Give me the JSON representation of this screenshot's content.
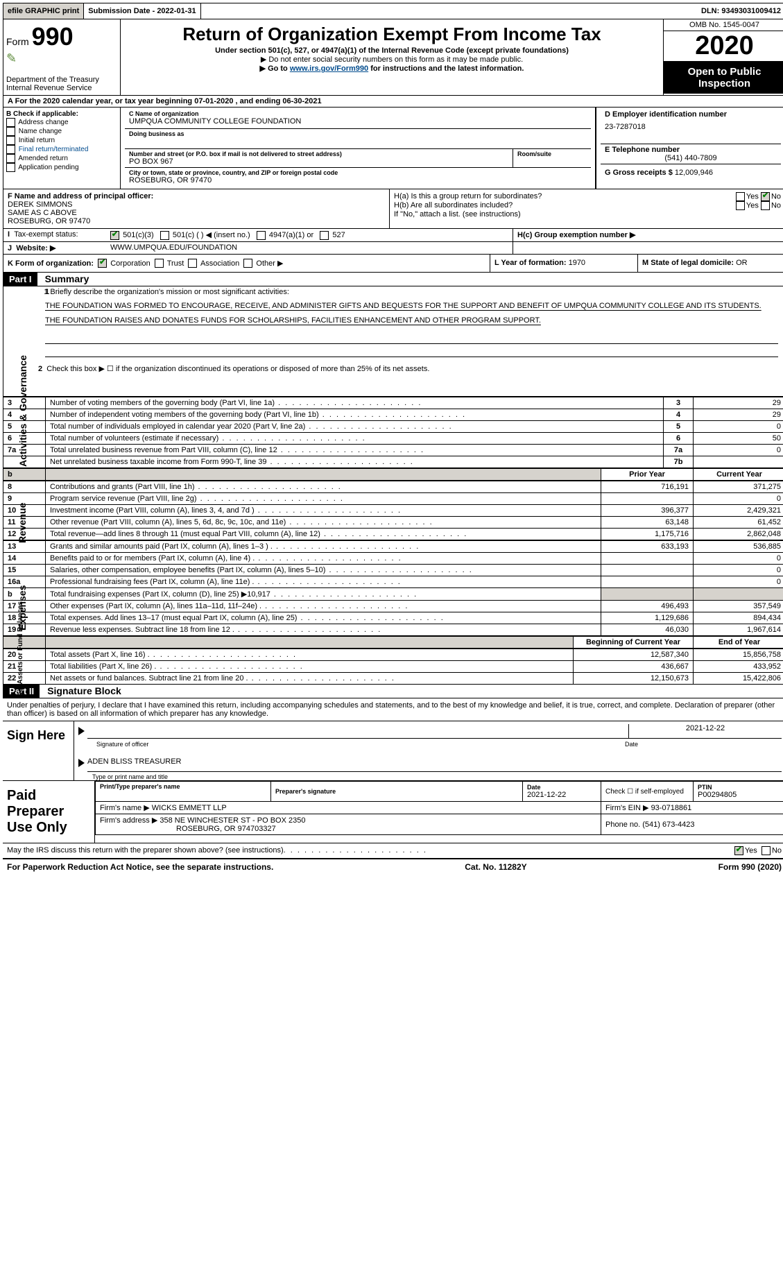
{
  "topbar": {
    "efile": "efile GRAPHIC print",
    "submission": "Submission Date - 2022-01-31",
    "dln": "DLN: 93493031009412"
  },
  "header": {
    "form_label": "Form",
    "form_number": "990",
    "title": "Return of Organization Exempt From Income Tax",
    "under_section": "Under section 501(c), 527, or 4947(a)(1) of the Internal Revenue Code (except private foundations)",
    "note1": "▶ Do not enter social security numbers on this form as it may be made public.",
    "note2_pre": "▶ Go to ",
    "note2_link": "www.irs.gov/Form990",
    "note2_post": " for instructions and the latest information.",
    "dept": "Department of the Treasury",
    "irs": "Internal Revenue Service",
    "omb": "OMB No. 1545-0047",
    "year": "2020",
    "open_pub": "Open to Public Inspection"
  },
  "line_a": "For the 2020 calendar year, or tax year beginning 07-01-2020    , and ending 06-30-2021",
  "col_b": {
    "header": "B Check if applicable:",
    "items": [
      "Address change",
      "Name change",
      "Initial return",
      "Final return/terminated",
      "Amended return",
      "Application pending"
    ]
  },
  "col_c": {
    "name_label": "C Name of organization",
    "name": "UMPQUA COMMUNITY COLLEGE FOUNDATION",
    "dba_label": "Doing business as",
    "dba": "",
    "street_label": "Number and street (or P.O. box if mail is not delivered to street address)",
    "street": "PO BOX 967",
    "room_label": "Room/suite",
    "city_label": "City or town, state or province, country, and ZIP or foreign postal code",
    "city": "ROSEBURG, OR  97470"
  },
  "col_d": {
    "label": "D Employer identification number",
    "value": "23-7287018"
  },
  "col_e": {
    "label": "E Telephone number",
    "value": "(541) 440-7809"
  },
  "col_g": {
    "label": "G Gross receipts $",
    "value": "12,009,946"
  },
  "col_f": {
    "label": "F  Name and address of principal officer:",
    "name": "DEREK SIMMONS",
    "line2": "SAME AS C ABOVE",
    "line3": "ROSEBURG, OR  97470"
  },
  "col_h": {
    "ha": "H(a)  Is this a group return for subordinates?",
    "hb": "H(b)  Are all subordinates included?",
    "hb_note": "If \"No,\" attach a list. (see instructions)",
    "hc": "H(c)  Group exemption number ▶",
    "yes": "Yes",
    "no": "No"
  },
  "line_i": {
    "label": "Tax-exempt status:",
    "opt1": "501(c)(3)",
    "opt2": "501(c) (   ) ◀ (insert no.)",
    "opt3": "4947(a)(1) or",
    "opt4": "527"
  },
  "line_j": {
    "label": "Website: ▶",
    "value": "WWW.UMPQUA.EDU/FOUNDATION"
  },
  "line_k": {
    "label": "K Form of organization:",
    "opts": [
      "Corporation",
      "Trust",
      "Association",
      "Other ▶"
    ]
  },
  "line_l": {
    "label": "L Year of formation:",
    "value": "1970"
  },
  "line_m": {
    "label": "M State of legal domicile:",
    "value": "OR"
  },
  "part1": {
    "header": "Part I",
    "title": "Summary",
    "line1_label": "1  Briefly describe the organization's mission or most significant activities:",
    "mission": "THE FOUNDATION WAS FORMED TO ENCOURAGE, RECEIVE, AND ADMINISTER GIFTS AND BEQUESTS FOR THE SUPPORT AND BENEFIT OF UMPQUA COMMUNITY COLLEGE AND ITS STUDENTS. THE FOUNDATION RAISES AND DONATES FUNDS FOR SCHOLARSHIPS, FACILITIES ENHANCEMENT AND OTHER PROGRAM SUPPORT.",
    "line2": "Check this box ▶ ☐ if the organization discontinued its operations or disposed of more than 25% of its net assets.",
    "side_activities": "Activities & Governance",
    "side_revenue": "Revenue",
    "side_expenses": "Expenses",
    "side_net": "Net Assets or Fund Balances"
  },
  "governance_rows": [
    {
      "n": "3",
      "label": "Number of voting members of the governing body (Part VI, line 1a)",
      "box": "3",
      "val": "29"
    },
    {
      "n": "4",
      "label": "Number of independent voting members of the governing body (Part VI, line 1b)",
      "box": "4",
      "val": "29"
    },
    {
      "n": "5",
      "label": "Total number of individuals employed in calendar year 2020 (Part V, line 2a)",
      "box": "5",
      "val": "0"
    },
    {
      "n": "6",
      "label": "Total number of volunteers (estimate if necessary)",
      "box": "6",
      "val": "50"
    },
    {
      "n": "7a",
      "label": "Total unrelated business revenue from Part VIII, column (C), line 12",
      "box": "7a",
      "val": "0"
    },
    {
      "n": "",
      "label": "Net unrelated business taxable income from Form 990-T, line 39",
      "box": "7b",
      "val": ""
    }
  ],
  "two_col_header": {
    "prior": "Prior Year",
    "current": "Current Year"
  },
  "revenue_rows": [
    {
      "n": "8",
      "label": "Contributions and grants (Part VIII, line 1h)",
      "prior": "716,191",
      "curr": "371,275"
    },
    {
      "n": "9",
      "label": "Program service revenue (Part VIII, line 2g)",
      "prior": "",
      "curr": "0"
    },
    {
      "n": "10",
      "label": "Investment income (Part VIII, column (A), lines 3, 4, and 7d )",
      "prior": "396,377",
      "curr": "2,429,321"
    },
    {
      "n": "11",
      "label": "Other revenue (Part VIII, column (A), lines 5, 6d, 8c, 9c, 10c, and 11e)",
      "prior": "63,148",
      "curr": "61,452"
    },
    {
      "n": "12",
      "label": "Total revenue—add lines 8 through 11 (must equal Part VIII, column (A), line 12)",
      "prior": "1,175,716",
      "curr": "2,862,048"
    }
  ],
  "expense_rows": [
    {
      "n": "13",
      "label": "Grants and similar amounts paid (Part IX, column (A), lines 1–3 )  .",
      "prior": "633,193",
      "curr": "536,885"
    },
    {
      "n": "14",
      "label": "Benefits paid to or for members (Part IX, column (A), line 4)  .",
      "prior": "",
      "curr": "0"
    },
    {
      "n": "15",
      "label": "Salaries, other compensation, employee benefits (Part IX, column (A), lines 5–10)",
      "prior": "",
      "curr": "0"
    },
    {
      "n": "16a",
      "label": "Professional fundraising fees (Part IX, column (A), line 11e)  .",
      "prior": "",
      "curr": "0"
    },
    {
      "n": "b",
      "label": "Total fundraising expenses (Part IX, column (D), line 25) ▶10,917",
      "prior": "GREY",
      "curr": "GREY"
    },
    {
      "n": "17",
      "label": "Other expenses (Part IX, column (A), lines 11a–11d, 11f–24e)  .",
      "prior": "496,493",
      "curr": "357,549"
    },
    {
      "n": "18",
      "label": "Total expenses. Add lines 13–17 (must equal Part IX, column (A), line 25)",
      "prior": "1,129,686",
      "curr": "894,434"
    },
    {
      "n": "19",
      "label": "Revenue less expenses. Subtract line 18 from line 12  .",
      "prior": "46,030",
      "curr": "1,967,614"
    }
  ],
  "balance_header": {
    "begin": "Beginning of Current Year",
    "end": "End of Year"
  },
  "balance_rows": [
    {
      "n": "20",
      "label": "Total assets (Part X, line 16)  .",
      "prior": "12,587,340",
      "curr": "15,856,758"
    },
    {
      "n": "21",
      "label": "Total liabilities (Part X, line 26)  .",
      "prior": "436,667",
      "curr": "433,952"
    },
    {
      "n": "22",
      "label": "Net assets or fund balances. Subtract line 21 from line 20  .",
      "prior": "12,150,673",
      "curr": "15,422,806"
    }
  ],
  "part2": {
    "header": "Part II",
    "title": "Signature Block",
    "penalties": "Under penalties of perjury, I declare that I have examined this return, including accompanying schedules and statements, and to the best of my knowledge and belief, it is true, correct, and complete. Declaration of preparer (other than officer) is based on all information of which preparer has any knowledge."
  },
  "sign": {
    "left": "Sign Here",
    "sig_label": "Signature of officer",
    "date": "2021-12-22",
    "date_label": "Date",
    "name": "ADEN BLISS  TREASURER",
    "name_label": "Type or print name and title"
  },
  "preparer": {
    "left": "Paid Preparer Use Only",
    "r1c1_label": "Print/Type preparer's name",
    "r1c2_label": "Preparer's signature",
    "r1c3_label": "Date",
    "r1c3_val": "2021-12-22",
    "r1c4_label": "Check ☐ if self-employed",
    "r1c5_label": "PTIN",
    "r1c5_val": "P00294805",
    "firm_name_label": "Firm's name    ▶",
    "firm_name": "WICKS EMMETT LLP",
    "firm_ein_label": "Firm's EIN ▶",
    "firm_ein": "93-0718861",
    "firm_addr_label": "Firm's address ▶",
    "firm_addr1": "358 NE WINCHESTER ST - PO BOX 2350",
    "firm_addr2": "ROSEBURG, OR  974703327",
    "phone_label": "Phone no.",
    "phone": "(541) 673-4423"
  },
  "discuss": {
    "q": "May the IRS discuss this return with the preparer shown above? (see instructions)",
    "yes": "Yes",
    "no": "No"
  },
  "footer": {
    "pra": "For Paperwork Reduction Act Notice, see the separate instructions.",
    "cat": "Cat. No. 11282Y",
    "form": "Form 990 (2020)"
  },
  "colors": {
    "grey": "#d6d3cd",
    "link": "#004b8d",
    "check_green": "#008000"
  }
}
